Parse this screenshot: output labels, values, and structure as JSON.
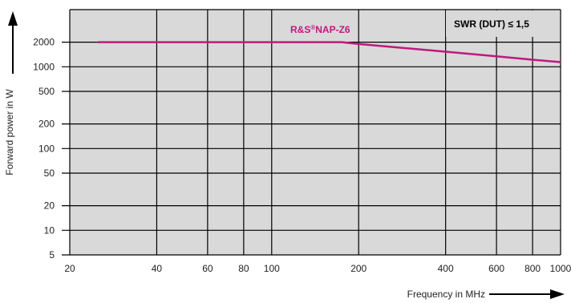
{
  "chart_data": {
    "type": "line",
    "xlabel": "Frequency in MHz",
    "ylabel": "Forward power in W",
    "x_scale": "log",
    "y_scale": "log",
    "xlim": [
      20,
      1000
    ],
    "ylim": [
      5,
      5000
    ],
    "x_ticks": [
      20,
      40,
      60,
      80,
      100,
      200,
      400,
      600,
      800,
      1000
    ],
    "y_ticks": [
      5,
      10,
      20,
      50,
      100,
      200,
      500,
      1000,
      2000
    ],
    "grid": true,
    "series": [
      {
        "name": "R&S®NAP-Z6",
        "x": [
          25,
          40,
          60,
          80,
          100,
          175,
          200,
          400,
          600,
          800,
          1000
        ],
        "y": [
          2000,
          2000,
          2000,
          2000,
          2000,
          2000,
          1900,
          1530,
          1340,
          1220,
          1140
        ]
      }
    ],
    "annotation": "SWR (DUT) ≤ 1,5"
  },
  "colors": {
    "plot_background": "#d9d9d9",
    "series": "#c0187e",
    "grid": "#000000",
    "axis_arrow": "#000000"
  }
}
